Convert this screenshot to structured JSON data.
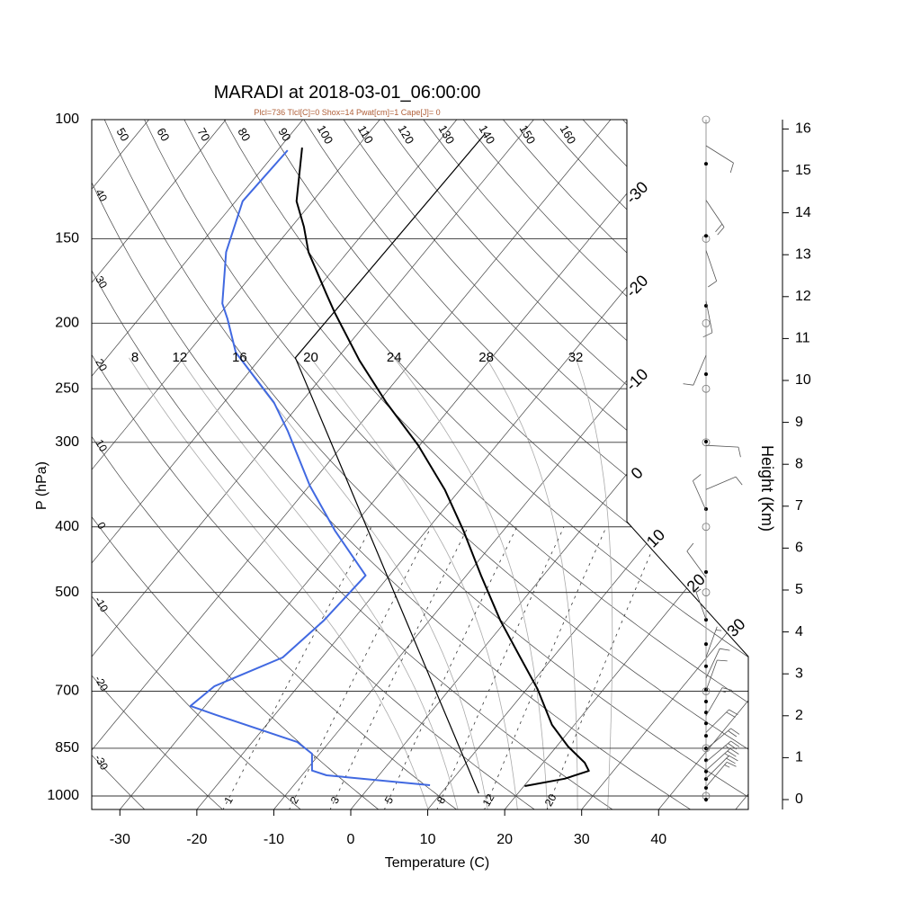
{
  "chart_data": {
    "type": "line",
    "title": "MARADI at 2018-03-01_06:00:00",
    "subtitle": "Plcl=736 Tlcl[C]=0 Shox=14 Pwat[cm]=1 Cape[J]= 0",
    "subtitle_color": "#b0603a",
    "xlabel": "Temperature (C)",
    "ylabel": "P (hPa)",
    "y2label": "Height (Km)",
    "x_ticks": [
      -30,
      -20,
      -10,
      0,
      10,
      20,
      30,
      40
    ],
    "p_ticks": [
      100,
      150,
      200,
      250,
      300,
      400,
      500,
      700,
      850,
      1000
    ],
    "height_ticks": [
      0,
      1,
      2,
      3,
      4,
      5,
      6,
      7,
      8,
      9,
      10,
      11,
      12,
      13,
      14,
      15,
      16
    ],
    "dry_adiabat_top_labels": [
      50,
      60,
      70,
      80,
      90,
      100,
      110,
      120,
      130,
      140,
      150,
      160
    ],
    "dry_adiabat_left_labels": [
      40,
      30,
      20,
      10,
      0,
      -10,
      -20,
      -30
    ],
    "isotherm_labels": [
      -30,
      -20,
      -10,
      0,
      10,
      20,
      30
    ],
    "moist_adiabat_labels": [
      8,
      12,
      16,
      20,
      24,
      28,
      32
    ],
    "mixing_ratio_labels": [
      1,
      2,
      3,
      5,
      8,
      12,
      20
    ],
    "series": [
      {
        "name": "temperature",
        "color": "#000000",
        "p": [
          967,
          943,
          918,
          893,
          845,
          785,
          695,
          622,
          550,
          472,
          405,
          353,
          303,
          262,
          227,
          193,
          181,
          157,
          144,
          132,
          110
        ],
        "t": [
          20.1,
          24.5,
          26.8,
          25.4,
          21.5,
          17.1,
          11.4,
          5.6,
          -0.8,
          -8.1,
          -15.2,
          -21.9,
          -30.2,
          -38.9,
          -46.9,
          -55.2,
          -58.3,
          -65.1,
          -68.4,
          -72.1,
          -77.1
        ]
      },
      {
        "name": "dewpoint",
        "color": "#4169e1",
        "p": [
          964,
          932,
          917,
          866,
          832,
          759,
          736,
          688,
          624,
          550,
          472,
          405,
          348,
          289,
          262,
          221,
          197,
          187,
          157,
          132,
          111
        ],
        "t": [
          7.7,
          -6.8,
          -9.2,
          -11.0,
          -14.2,
          -27.6,
          -31.9,
          -30.9,
          -25.1,
          -23.7,
          -23.1,
          -31.9,
          -39.9,
          -48.6,
          -53.5,
          -63.8,
          -68.5,
          -70.8,
          -75.8,
          -79.1,
          -78.7
        ]
      },
      {
        "name": "parcel",
        "color": "#000000",
        "p": [
          991,
          225,
          105
        ],
        "t": [
          14.9,
          -55.5,
          -54.8
        ]
      }
    ],
    "wind_levels_km": [
      15.17,
      13.45,
      11.78,
      10.15,
      8.54,
      6.93,
      5.43,
      4.29,
      3.71,
      3.18,
      2.62,
      2.34,
      2.08,
      1.82,
      1.52,
      1.22,
      0.94,
      0.67,
      0.49,
      0.28,
      0.0
    ],
    "winds": [
      {
        "h": 15.6,
        "dir": 122,
        "spd": 10
      },
      {
        "h": 14.3,
        "dir": 146,
        "spd": 20
      },
      {
        "h": 13.1,
        "dir": 161,
        "spd": 10
      },
      {
        "h": 11.9,
        "dir": 169,
        "spd": 10
      },
      {
        "h": 10.6,
        "dir": 203,
        "spd": 10
      },
      {
        "h": 8.45,
        "dir": 93,
        "spd": 10
      },
      {
        "h": 7.4,
        "dir": 67,
        "spd": 10
      },
      {
        "h": 6.9,
        "dir": 336,
        "spd": 10
      },
      {
        "h": 5.3,
        "dir": 324,
        "spd": 10
      },
      {
        "h": 4.3,
        "dir": 340,
        "spd": 5
      },
      {
        "h": 3.4,
        "dir": 20,
        "spd": 5
      },
      {
        "h": 2.9,
        "dir": 25,
        "spd": 10
      },
      {
        "h": 2.6,
        "dir": 20,
        "spd": 10
      },
      {
        "h": 2.0,
        "dir": 30,
        "spd": 15
      },
      {
        "h": 1.6,
        "dir": 45,
        "spd": 20
      },
      {
        "h": 1.2,
        "dir": 50,
        "spd": 20
      },
      {
        "h": 0.9,
        "dir": 50,
        "spd": 25
      },
      {
        "h": 0.7,
        "dir": 48,
        "spd": 25
      },
      {
        "h": 0.5,
        "dir": 45,
        "spd": 20
      },
      {
        "h": 0.3,
        "dir": 40,
        "spd": 15
      }
    ]
  }
}
